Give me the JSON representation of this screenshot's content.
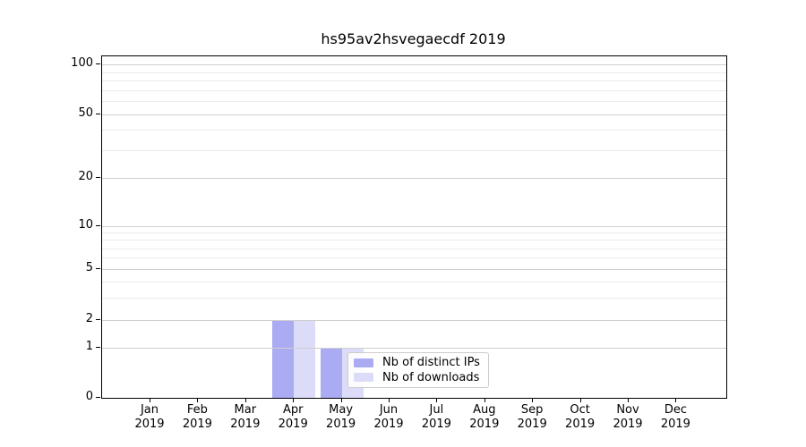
{
  "figure": {
    "title": "hs95av2hsvegaecdf 2019"
  },
  "chart_data": {
    "type": "bar",
    "title": "hs95av2hsvegaecdf 2019",
    "x_year": "2019",
    "categories": [
      "Jan",
      "Feb",
      "Mar",
      "Apr",
      "May",
      "Jun",
      "Jul",
      "Aug",
      "Sep",
      "Oct",
      "Nov",
      "Dec"
    ],
    "series": [
      {
        "name": "Nb of distinct IPs",
        "color": "#ababf3",
        "values": [
          0,
          0,
          0,
          2,
          1,
          0,
          0,
          0,
          0,
          0,
          0,
          0
        ]
      },
      {
        "name": "Nb of downloads",
        "color": "#dcdcf8",
        "values": [
          0,
          0,
          0,
          2,
          1,
          0,
          0,
          0,
          0,
          0,
          0,
          0
        ]
      }
    ],
    "yscale": "asinh",
    "y_ticks": [
      0,
      1,
      2,
      5,
      10,
      20,
      50,
      100
    ],
    "y_minor_ticks": [
      3,
      4,
      6,
      7,
      8,
      9,
      30,
      40,
      60,
      70,
      80,
      90
    ],
    "ylim": [
      0,
      112
    ],
    "grid": "horizontal major+minor",
    "legend_position": "inside lower-center",
    "colors": {
      "major_grid": "#cfcfcf",
      "minor_grid": "#ebebeb",
      "axis": "#000000"
    }
  }
}
